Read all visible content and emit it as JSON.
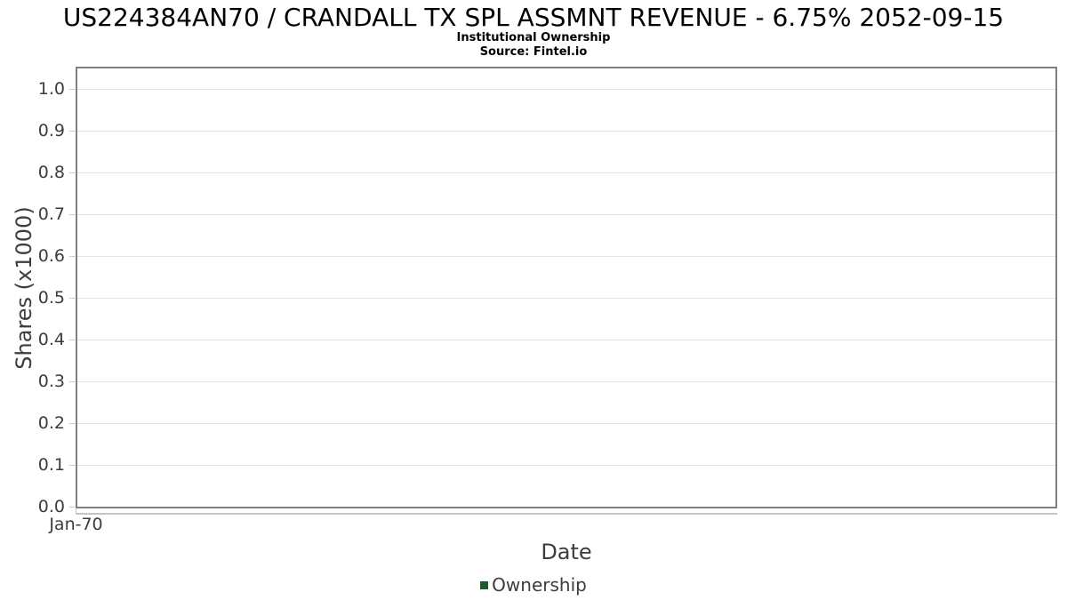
{
  "chart_data": {
    "type": "bar",
    "title": "US224384AN70 / CRANDALL TX SPL ASSMNT REVENUE - 6.75% 2052-09-15",
    "subtitle": "Institutional Ownership",
    "source": "Source: Fintel.io",
    "xlabel": "Date",
    "ylabel": "Shares (x1000)",
    "categories": [
      "Jan-70"
    ],
    "series": [
      {
        "name": "Ownership",
        "color": "#1f5731",
        "values": []
      }
    ],
    "yticks": [
      "0.0",
      "0.1",
      "0.2",
      "0.3",
      "0.4",
      "0.5",
      "0.6",
      "0.7",
      "0.8",
      "0.9",
      "1.0"
    ],
    "ylim": [
      0,
      1.05
    ],
    "grid": true,
    "legend_position": "bottom"
  },
  "colors": {
    "frame": "#7e7e7e",
    "gridline": "#e4e4e4",
    "tick": "#c9c9c9",
    "tick_label": "#3d3d3d",
    "title_text": "#000000",
    "legend_swatch": "#1f5731",
    "background": "#ffffff"
  }
}
